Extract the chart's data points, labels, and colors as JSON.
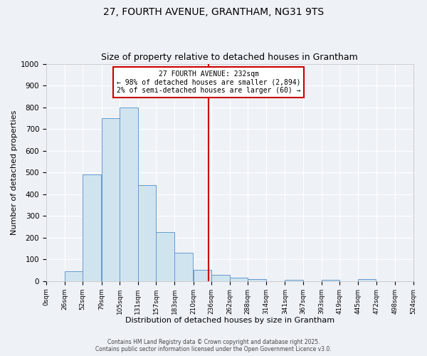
{
  "title": "27, FOURTH AVENUE, GRANTHAM, NG31 9TS",
  "subtitle": "Size of property relative to detached houses in Grantham",
  "xlabel": "Distribution of detached houses by size in Grantham",
  "ylabel": "Number of detached properties",
  "bins_left": [
    0,
    26,
    52,
    79,
    105,
    131,
    157,
    183,
    210,
    236,
    262,
    288,
    314,
    341,
    367,
    393,
    419,
    445,
    472,
    498
  ],
  "bin_width": 26,
  "bar_heights": [
    0,
    45,
    490,
    750,
    800,
    440,
    225,
    130,
    50,
    30,
    15,
    10,
    0,
    5,
    0,
    5,
    0,
    8,
    0,
    0
  ],
  "bar_color": "#d0e4f0",
  "bar_edge_color": "#6699cc",
  "property_size": 232,
  "vline_color": "#cc0000",
  "annotation_line1": "27 FOURTH AVENUE: 232sqm",
  "annotation_line2": "← 98% of detached houses are smaller (2,894)",
  "annotation_line3": "2% of semi-detached houses are larger (60) →",
  "annotation_box_color": "#ffffff",
  "annotation_box_edge_color": "#cc0000",
  "ylim": [
    0,
    1000
  ],
  "xlim_left": 0,
  "xlim_right": 524,
  "tick_labels": [
    "0sqm",
    "26sqm",
    "52sqm",
    "79sqm",
    "105sqm",
    "131sqm",
    "157sqm",
    "183sqm",
    "210sqm",
    "236sqm",
    "262sqm",
    "288sqm",
    "314sqm",
    "341sqm",
    "367sqm",
    "393sqm",
    "419sqm",
    "445sqm",
    "472sqm",
    "498sqm",
    "524sqm"
  ],
  "tick_positions": [
    0,
    26,
    52,
    79,
    105,
    131,
    157,
    183,
    210,
    236,
    262,
    288,
    314,
    341,
    367,
    393,
    419,
    445,
    472,
    498,
    524
  ],
  "background_color": "#eef2f7",
  "grid_color": "#ffffff",
  "title_fontsize": 10,
  "subtitle_fontsize": 9,
  "xlabel_fontsize": 8,
  "ylabel_fontsize": 8,
  "tick_fontsize": 6.5,
  "ytick_fontsize": 7.5,
  "footer_text": "Contains HM Land Registry data © Crown copyright and database right 2025.\nContains public sector information licensed under the Open Government Licence v3.0."
}
